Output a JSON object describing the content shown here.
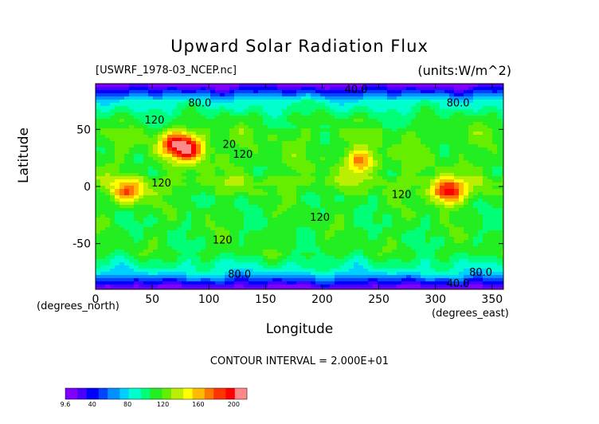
{
  "chart_data": {
    "type": "heatmap",
    "title": "Upward Solar Radiation Flux",
    "source_file": "[USWRF_1978-03_NCEP.nc]",
    "units_label": "(units:W/m^2)",
    "xlabel": "Longitude",
    "ylabel": "Latitude",
    "x_units": "(degrees_east)",
    "y_units": "(degrees_north)",
    "xlim": [
      0,
      360
    ],
    "ylim": [
      -90,
      90
    ],
    "x_ticks": [
      0,
      50,
      100,
      150,
      200,
      250,
      300,
      350
    ],
    "y_ticks": [
      -50,
      0,
      50
    ],
    "contour_interval": "CONTOUR INTERVAL = 2.000E+01",
    "contour_labels": [
      {
        "text": "40.0",
        "lon": 230,
        "lat": 82
      },
      {
        "text": "80.0",
        "lon": 92,
        "lat": 70
      },
      {
        "text": "80.0",
        "lon": 320,
        "lat": 70
      },
      {
        "text": "120",
        "lon": 52,
        "lat": 55
      },
      {
        "text": "120",
        "lon": 130,
        "lat": 25
      },
      {
        "text": "20",
        "lon": 118,
        "lat": 34
      },
      {
        "text": "120",
        "lon": 58,
        "lat": 0
      },
      {
        "text": "120",
        "lon": 270,
        "lat": -10
      },
      {
        "text": "120",
        "lon": 198,
        "lat": -30
      },
      {
        "text": "120",
        "lon": 112,
        "lat": -50
      },
      {
        "text": "80.0",
        "lon": 127,
        "lat": -80
      },
      {
        "text": "80.0",
        "lon": 340,
        "lat": -78
      },
      {
        "text": "40.0",
        "lon": 320,
        "lat": -88
      }
    ],
    "hotspots": [
      {
        "lon": 70,
        "lat": 37,
        "value": 180
      },
      {
        "lon": 85,
        "lat": 33,
        "value": 180
      },
      {
        "lon": 310,
        "lat": -5,
        "value": 200
      },
      {
        "lon": 30,
        "lat": -5,
        "value": 170
      },
      {
        "lon": 235,
        "lat": 22,
        "value": 165
      }
    ],
    "colorbar": {
      "tick_labels": [
        "9.6",
        "40",
        "80",
        "120",
        "160",
        "200"
      ],
      "tick_values": [
        9.6,
        40,
        80,
        120,
        160,
        200
      ],
      "min": 9.6,
      "max": 215,
      "colors": [
        "#8000ff",
        "#4a00ff",
        "#0000ff",
        "#0044ff",
        "#0090ff",
        "#00d0ff",
        "#00ffcc",
        "#00ff77",
        "#22ee22",
        "#66ee00",
        "#bbee00",
        "#ffff00",
        "#ffbb00",
        "#ff7700",
        "#ff3300",
        "#ff0000",
        "#ff8888"
      ]
    }
  }
}
